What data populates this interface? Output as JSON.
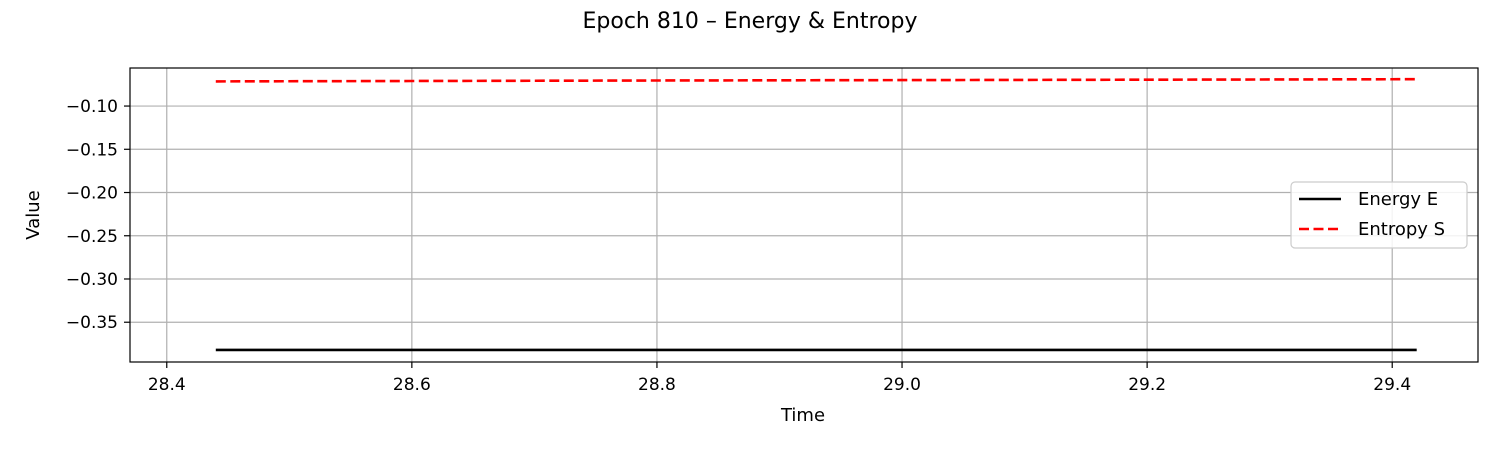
{
  "chart_data": {
    "type": "line",
    "title": "Epoch 810 – Energy & Entropy",
    "xlabel": "Time",
    "ylabel": "Value",
    "xlim": [
      28.37,
      29.47
    ],
    "ylim": [
      -0.396,
      -0.056
    ],
    "xticks": [
      {
        "value": 28.4,
        "label": "28.4"
      },
      {
        "value": 28.6,
        "label": "28.6"
      },
      {
        "value": 28.8,
        "label": "28.8"
      },
      {
        "value": 29.0,
        "label": "29.0"
      },
      {
        "value": 29.2,
        "label": "29.2"
      },
      {
        "value": 29.4,
        "label": "29.4"
      }
    ],
    "yticks": [
      {
        "value": -0.1,
        "label": "−0.10"
      },
      {
        "value": -0.15,
        "label": "−0.15"
      },
      {
        "value": -0.2,
        "label": "−0.20"
      },
      {
        "value": -0.25,
        "label": "−0.25"
      },
      {
        "value": -0.3,
        "label": "−0.30"
      },
      {
        "value": -0.35,
        "label": "−0.35"
      }
    ],
    "grid": true,
    "legend_position": "center-right",
    "series": [
      {
        "name": "Energy E",
        "color": "#000000",
        "style": "solid",
        "x": [
          28.44,
          28.6,
          28.8,
          29.0,
          29.2,
          29.42
        ],
        "y": [
          -0.382,
          -0.382,
          -0.382,
          -0.382,
          -0.382,
          -0.382
        ]
      },
      {
        "name": "Entropy S",
        "color": "#ff0000",
        "style": "dashed",
        "x": [
          28.44,
          28.6,
          28.8,
          29.0,
          29.2,
          29.42
        ],
        "y": [
          -0.0715,
          -0.071,
          -0.0705,
          -0.07,
          -0.0695,
          -0.069
        ]
      }
    ]
  }
}
